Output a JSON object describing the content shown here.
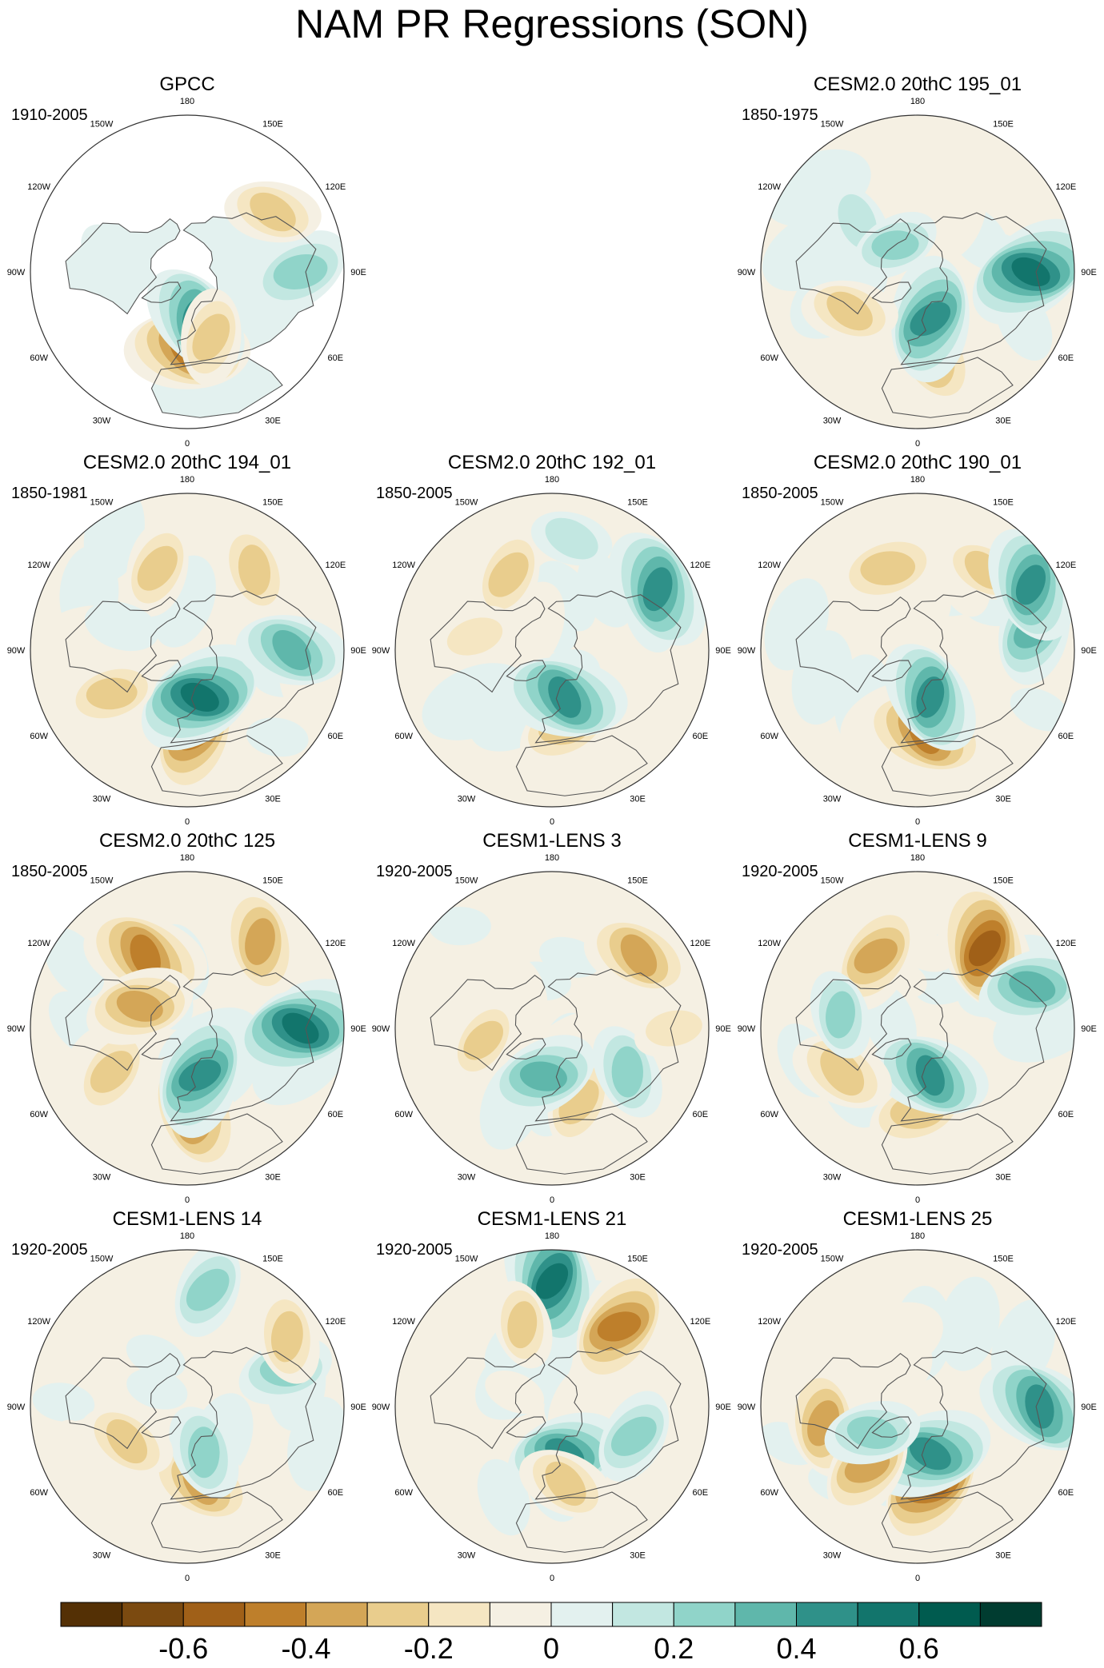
{
  "title": "NAM PR Regressions (SON)",
  "chart_data": {
    "type": "heatmap",
    "projection": "north polar stereographic",
    "variable": "precipitation regression onto NAM",
    "season": "SON",
    "panels": [
      {
        "title": "GPCC",
        "years": "1910-2005",
        "row": 0,
        "col": 0,
        "land_only": true,
        "features": [
          {
            "lon": 0,
            "lat": 45,
            "value": -0.5
          },
          {
            "lon": 10,
            "lat": 62,
            "value": 0.45
          },
          {
            "lon": 20,
            "lat": 50,
            "value": -0.3
          },
          {
            "lon": 90,
            "lat": 25,
            "value": 0.35
          },
          {
            "lon": 125,
            "lat": 30,
            "value": -0.3
          },
          {
            "lon": 260,
            "lat": 45,
            "value": 0.15
          }
        ]
      },
      {
        "title": "CESM2.0 20thC 195_01",
        "years": "1850-1975",
        "row": 0,
        "col": 2,
        "features": [
          {
            "lon": 10,
            "lat": 42,
            "value": -0.4
          },
          {
            "lon": 15,
            "lat": 62,
            "value": 0.5
          },
          {
            "lon": 90,
            "lat": 25,
            "value": 0.55
          },
          {
            "lon": 300,
            "lat": 45,
            "value": -0.3
          },
          {
            "lon": 230,
            "lat": 45,
            "value": 0.2
          },
          {
            "lon": 160,
            "lat": 30,
            "value": -0.15
          },
          {
            "lon": 220,
            "lat": 70,
            "value": 0.25
          }
        ]
      },
      {
        "title": "CESM2.0 20thC 194_01",
        "years": "1850-1981",
        "row": 1,
        "col": 0,
        "features": [
          {
            "lon": 5,
            "lat": 42,
            "value": -0.5
          },
          {
            "lon": 15,
            "lat": 62,
            "value": 0.55
          },
          {
            "lon": 90,
            "lat": 30,
            "value": 0.4
          },
          {
            "lon": 140,
            "lat": 30,
            "value": -0.3
          },
          {
            "lon": 200,
            "lat": 40,
            "value": -0.3
          },
          {
            "lon": 300,
            "lat": 40,
            "value": -0.3
          },
          {
            "lon": 250,
            "lat": 50,
            "value": 0.15
          }
        ]
      },
      {
        "title": "CESM2.0 20thC 192_01",
        "years": "1850-2005",
        "row": 1,
        "col": 1,
        "features": [
          {
            "lon": 10,
            "lat": 45,
            "value": -0.35
          },
          {
            "lon": 15,
            "lat": 62,
            "value": 0.5
          },
          {
            "lon": 120,
            "lat": 20,
            "value": 0.5
          },
          {
            "lon": 210,
            "lat": 40,
            "value": -0.3
          },
          {
            "lon": 260,
            "lat": 45,
            "value": -0.2
          },
          {
            "lon": 170,
            "lat": 25,
            "value": 0.2
          }
        ]
      },
      {
        "title": "CESM2.0 20thC 190_01",
        "years": "1850-2005",
        "row": 1,
        "col": 2,
        "features": [
          {
            "lon": 5,
            "lat": 42,
            "value": -0.5
          },
          {
            "lon": 15,
            "lat": 62,
            "value": 0.45
          },
          {
            "lon": 100,
            "lat": 22,
            "value": 0.4
          },
          {
            "lon": 200,
            "lat": 40,
            "value": -0.35
          },
          {
            "lon": 140,
            "lat": 30,
            "value": -0.25
          },
          {
            "lon": 120,
            "lat": 15,
            "value": 0.45
          }
        ]
      },
      {
        "title": "CESM2.0 20thC 125",
        "years": "1850-2005",
        "row": 2,
        "col": 0,
        "features": [
          {
            "lon": 5,
            "lat": 42,
            "value": -0.5
          },
          {
            "lon": 15,
            "lat": 62,
            "value": 0.5
          },
          {
            "lon": 90,
            "lat": 25,
            "value": 0.55
          },
          {
            "lon": 210,
            "lat": 42,
            "value": -0.5
          },
          {
            "lon": 140,
            "lat": 25,
            "value": -0.4
          },
          {
            "lon": 300,
            "lat": 40,
            "value": -0.3
          },
          {
            "lon": 245,
            "lat": 60,
            "value": -0.4
          }
        ]
      },
      {
        "title": "CESM1-LENS 3",
        "years": "1920-2005",
        "row": 2,
        "col": 1,
        "features": [
          {
            "lon": 20,
            "lat": 45,
            "value": -0.3
          },
          {
            "lon": 350,
            "lat": 62,
            "value": 0.4
          },
          {
            "lon": 130,
            "lat": 25,
            "value": -0.4
          },
          {
            "lon": 60,
            "lat": 40,
            "value": 0.3
          },
          {
            "lon": 280,
            "lat": 50,
            "value": -0.25
          },
          {
            "lon": 90,
            "lat": 20,
            "value": -0.2
          }
        ]
      },
      {
        "title": "CESM1-LENS 9",
        "years": "1920-2005",
        "row": 2,
        "col": 2,
        "features": [
          {
            "lon": 0,
            "lat": 42,
            "value": -0.35
          },
          {
            "lon": 15,
            "lat": 62,
            "value": 0.45
          },
          {
            "lon": 140,
            "lat": 30,
            "value": -0.55
          },
          {
            "lon": 210,
            "lat": 42,
            "value": -0.4
          },
          {
            "lon": 110,
            "lat": 20,
            "value": 0.4
          },
          {
            "lon": 300,
            "lat": 40,
            "value": -0.35
          },
          {
            "lon": 260,
            "lat": 45,
            "value": 0.25
          }
        ]
      },
      {
        "title": "CESM1-LENS 14",
        "years": "1920-2005",
        "row": 3,
        "col": 0,
        "features": [
          {
            "lon": 10,
            "lat": 45,
            "value": -0.4
          },
          {
            "lon": 20,
            "lat": 62,
            "value": 0.3
          },
          {
            "lon": 170,
            "lat": 22,
            "value": 0.3
          },
          {
            "lon": 110,
            "lat": 30,
            "value": 0.3
          },
          {
            "lon": 300,
            "lat": 50,
            "value": -0.3
          },
          {
            "lon": 125,
            "lat": 20,
            "value": -0.3
          }
        ]
      },
      {
        "title": "CESM1-LENS 21",
        "years": "1920-2005",
        "row": 3,
        "col": 1,
        "features": [
          {
            "lon": 180,
            "lat": 18,
            "value": 0.55
          },
          {
            "lon": 140,
            "lat": 30,
            "value": -0.5
          },
          {
            "lon": 15,
            "lat": 62,
            "value": 0.45
          },
          {
            "lon": 10,
            "lat": 45,
            "value": -0.3
          },
          {
            "lon": 200,
            "lat": 40,
            "value": -0.25
          },
          {
            "lon": 70,
            "lat": 40,
            "value": 0.3
          }
        ]
      },
      {
        "title": "CESM1-LENS 25",
        "years": "1920-2005",
        "row": 3,
        "col": 2,
        "features": [
          {
            "lon": 10,
            "lat": 45,
            "value": -0.55
          },
          {
            "lon": 15,
            "lat": 62,
            "value": 0.5
          },
          {
            "lon": 90,
            "lat": 20,
            "value": 0.5
          },
          {
            "lon": 280,
            "lat": 35,
            "value": -0.4
          },
          {
            "lon": 320,
            "lat": 45,
            "value": -0.4
          },
          {
            "lon": 300,
            "lat": 60,
            "value": 0.3
          }
        ]
      }
    ],
    "longitude_labels": [
      "180",
      "150E",
      "120E",
      "90E",
      "60E",
      "30E",
      "0",
      "30W",
      "60W",
      "90W",
      "120W",
      "150W"
    ],
    "colorbar": {
      "colors": [
        "#543005",
        "#7b4a10",
        "#a06018",
        "#be7f2b",
        "#d4a657",
        "#e9cd8d",
        "#f5e6c2",
        "#f5f0e3",
        "#e3f1ef",
        "#c2e7e1",
        "#90d4c9",
        "#5fb7ab",
        "#2f9189",
        "#12756c",
        "#005b4f",
        "#003c30"
      ],
      "min": -0.8,
      "max": 0.8,
      "tick_values": [
        -0.6,
        -0.4,
        -0.2,
        0,
        0.2,
        0.4,
        0.6
      ],
      "tick_labels": [
        "-0.6",
        "-0.4",
        "-0.2",
        "0",
        "0.2",
        "0.4",
        "0.6"
      ]
    }
  }
}
